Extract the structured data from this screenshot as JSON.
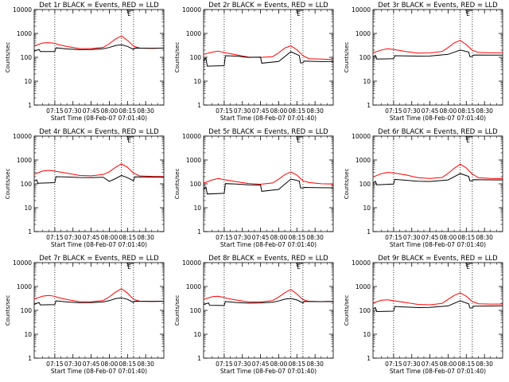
{
  "figure": {
    "x_ticks": [
      "07:15",
      "07:30",
      "07:45",
      "08:00",
      "08:15",
      "08:30"
    ],
    "x_tick_minutes": [
      0,
      15,
      30,
      45,
      60,
      75
    ],
    "x_range_minutes": [
      -17,
      90
    ],
    "y_ticks": [
      "1",
      "10",
      "100",
      "1000",
      "10000"
    ],
    "colors": {
      "events": "#000000",
      "lld": "#ff0000",
      "axes": "#000000"
    }
  },
  "chart_data": [
    {
      "type": "line",
      "title": "Det 1r BLACK = Events, RED = LLD",
      "xlabel": "Start Time (08-Feb-07 07:01:40)",
      "ylabel": "Counts/sec",
      "ylim": [
        1,
        10000
      ],
      "yticks": [
        1,
        10,
        100,
        1000,
        10000
      ],
      "xticks": [
        "07:15",
        "07:30",
        "07:45",
        "08:00",
        "08:15",
        "08:30"
      ],
      "flag_label": "E",
      "vlines_minutes": [
        0,
        55,
        65
      ],
      "series": [
        {
          "name": "LLD",
          "color": "#ff0000",
          "x": [
            -17,
            -10,
            -5,
            0,
            3,
            10,
            20,
            30,
            40,
            45,
            50,
            55,
            60,
            65,
            70,
            80,
            90
          ],
          "y": [
            300,
            390,
            400,
            380,
            340,
            290,
            240,
            235,
            260,
            360,
            560,
            780,
            520,
            300,
            250,
            240,
            240
          ]
        },
        {
          "name": "Events",
          "color": "#000000",
          "x": [
            -17,
            -13,
            -12,
            0,
            1,
            10,
            20,
            30,
            40,
            45,
            50,
            55,
            60,
            65,
            66,
            80,
            90
          ],
          "y": [
            180,
            210,
            170,
            170,
            250,
            230,
            215,
            215,
            225,
            250,
            300,
            330,
            290,
            220,
            250,
            240,
            240
          ]
        }
      ]
    },
    {
      "type": "line",
      "title": "Det 2r BLACK = Events, RED = LLD",
      "xlabel": "Start Time (08-Feb-07 07:01:40)",
      "ylabel": "Counts/sec",
      "ylim": [
        1,
        10000
      ],
      "yticks": [
        1,
        10,
        100,
        1000,
        10000
      ],
      "xticks": [
        "07:15",
        "07:30",
        "07:45",
        "08:00",
        "08:15",
        "08:30"
      ],
      "flag_label": "E",
      "vlines_minutes": [
        0,
        55,
        65
      ],
      "series": [
        {
          "name": "LLD",
          "color": "#ff0000",
          "x": [
            -17,
            -10,
            -5,
            0,
            10,
            20,
            30,
            40,
            45,
            50,
            55,
            60,
            65,
            70,
            80,
            90
          ],
          "y": [
            130,
            160,
            180,
            160,
            130,
            105,
            100,
            105,
            150,
            240,
            300,
            210,
            120,
            90,
            85,
            80
          ]
        },
        {
          "name": "Events",
          "color": "#000000",
          "x": [
            -17,
            -15,
            -14,
            0,
            1,
            10,
            20,
            30,
            31,
            45,
            55,
            62,
            63,
            65,
            66,
            80,
            90
          ],
          "y": [
            70,
            90,
            42,
            45,
            120,
            115,
            100,
            100,
            55,
            65,
            170,
            120,
            60,
            60,
            70,
            65,
            65
          ]
        }
      ]
    },
    {
      "type": "line",
      "title": "Det 3r BLACK = Events, RED = LLD",
      "xlabel": "Start Time (08-Feb-07 07:01:40)",
      "ylabel": "Counts/sec",
      "ylim": [
        1,
        10000
      ],
      "yticks": [
        1,
        10,
        100,
        1000,
        10000
      ],
      "xticks": [
        "07:15",
        "07:30",
        "07:45",
        "08:00",
        "08:15",
        "08:30"
      ],
      "flag_label": "E",
      "vlines_minutes": [
        0,
        55,
        65
      ],
      "series": [
        {
          "name": "LLD",
          "color": "#ff0000",
          "x": [
            -17,
            -10,
            -5,
            0,
            10,
            20,
            30,
            40,
            45,
            50,
            55,
            60,
            65,
            70,
            80,
            90
          ],
          "y": [
            150,
            200,
            230,
            220,
            180,
            150,
            150,
            170,
            250,
            400,
            520,
            350,
            200,
            160,
            150,
            150
          ]
        },
        {
          "name": "Events",
          "color": "#000000",
          "x": [
            -17,
            -15,
            -14,
            0,
            1,
            10,
            20,
            30,
            45,
            55,
            62,
            63,
            65,
            66,
            80,
            90
          ],
          "y": [
            100,
            120,
            85,
            90,
            120,
            115,
            110,
            110,
            130,
            200,
            170,
            110,
            110,
            125,
            120,
            120
          ]
        }
      ]
    },
    {
      "type": "line",
      "title": "Det 4r BLACK = Events, RED = LLD",
      "xlabel": "Start Time (08-Feb-07 07:01:40)",
      "ylabel": "Counts/sec",
      "ylim": [
        1,
        10000
      ],
      "yticks": [
        1,
        10,
        100,
        1000,
        10000
      ],
      "xticks": [
        "07:15",
        "07:30",
        "07:45",
        "08:00",
        "08:15",
        "08:30"
      ],
      "flag_label": "E",
      "vlines_minutes": [
        0,
        55,
        65
      ],
      "series": [
        {
          "name": "LLD",
          "color": "#ff0000",
          "x": [
            -17,
            -10,
            -5,
            0,
            10,
            20,
            30,
            40,
            45,
            50,
            55,
            60,
            65,
            70,
            80,
            90
          ],
          "y": [
            250,
            350,
            380,
            350,
            280,
            220,
            210,
            240,
            320,
            500,
            700,
            500,
            280,
            210,
            200,
            200
          ]
        },
        {
          "name": "Events",
          "color": "#000000",
          "x": [
            -17,
            -15,
            -14,
            0,
            1,
            10,
            20,
            30,
            40,
            45,
            50,
            55,
            60,
            65,
            66,
            80,
            90
          ],
          "y": [
            130,
            150,
            110,
            115,
            200,
            190,
            180,
            180,
            190,
            130,
            170,
            230,
            180,
            130,
            190,
            190,
            190
          ]
        }
      ]
    },
    {
      "type": "line",
      "title": "Det 5r BLACK = Events, RED = LLD",
      "xlabel": "Start Time (08-Feb-07 07:01:40)",
      "ylabel": "Counts/sec",
      "ylim": [
        1,
        10000
      ],
      "yticks": [
        1,
        10,
        100,
        1000,
        10000
      ],
      "xticks": [
        "07:15",
        "07:30",
        "07:45",
        "08:00",
        "08:15",
        "08:30"
      ],
      "flag_label": "E",
      "vlines_minutes": [
        0,
        55,
        65
      ],
      "series": [
        {
          "name": "LLD",
          "color": "#ff0000",
          "x": [
            -17,
            -10,
            -5,
            0,
            10,
            20,
            30,
            40,
            45,
            50,
            55,
            60,
            65,
            70,
            80,
            90
          ],
          "y": [
            110,
            150,
            170,
            150,
            120,
            100,
            95,
            110,
            160,
            250,
            320,
            230,
            130,
            110,
            100,
            100
          ]
        },
        {
          "name": "Events",
          "color": "#000000",
          "x": [
            -17,
            -15,
            -14,
            0,
            1,
            10,
            20,
            30,
            31,
            45,
            55,
            62,
            63,
            65,
            66,
            80,
            90
          ],
          "y": [
            60,
            75,
            38,
            40,
            100,
            95,
            90,
            90,
            50,
            60,
            160,
            130,
            65,
            65,
            70,
            70,
            70
          ]
        }
      ]
    },
    {
      "type": "line",
      "title": "Det 6r BLACK = Events, RED = LLD",
      "xlabel": "Start Time (08-Feb-07 07:01:40)",
      "ylabel": "Counts/sec",
      "ylim": [
        1,
        10000
      ],
      "yticks": [
        1,
        10,
        100,
        1000,
        10000
      ],
      "xticks": [
        "07:15",
        "07:30",
        "07:45",
        "08:00",
        "08:15",
        "08:30"
      ],
      "flag_label": "E",
      "vlines_minutes": [
        0,
        55,
        65
      ],
      "series": [
        {
          "name": "LLD",
          "color": "#ff0000",
          "x": [
            -17,
            -10,
            -5,
            0,
            10,
            20,
            30,
            40,
            45,
            50,
            55,
            60,
            65,
            70,
            80,
            90
          ],
          "y": [
            200,
            270,
            300,
            280,
            230,
            180,
            170,
            190,
            280,
            450,
            650,
            450,
            250,
            180,
            170,
            170
          ]
        },
        {
          "name": "Events",
          "color": "#000000",
          "x": [
            -17,
            -15,
            -14,
            0,
            1,
            10,
            20,
            30,
            45,
            55,
            62,
            63,
            65,
            66,
            80,
            90
          ],
          "y": [
            110,
            130,
            90,
            95,
            150,
            140,
            130,
            130,
            150,
            270,
            200,
            130,
            130,
            150,
            150,
            150
          ]
        }
      ]
    },
    {
      "type": "line",
      "title": "Det 7r BLACK = Events, RED = LLD",
      "xlabel": "Start Time (08-Feb-07 07:01:40)",
      "ylabel": "Counts/sec",
      "ylim": [
        1,
        10000
      ],
      "yticks": [
        1,
        10,
        100,
        1000,
        10000
      ],
      "xticks": [
        "07:15",
        "07:30",
        "07:45",
        "08:00",
        "08:15",
        "08:30"
      ],
      "flag_label": "E",
      "vlines_minutes": [
        0,
        55,
        65
      ],
      "series": [
        {
          "name": "LLD",
          "color": "#ff0000",
          "x": [
            -17,
            -10,
            -5,
            0,
            3,
            10,
            20,
            30,
            40,
            45,
            50,
            55,
            60,
            65,
            70,
            80,
            90
          ],
          "y": [
            300,
            390,
            410,
            380,
            340,
            290,
            240,
            235,
            260,
            360,
            560,
            800,
            530,
            300,
            250,
            240,
            240
          ]
        },
        {
          "name": "Events",
          "color": "#000000",
          "x": [
            -17,
            -13,
            -12,
            0,
            1,
            10,
            20,
            30,
            40,
            45,
            50,
            55,
            60,
            65,
            66,
            80,
            90
          ],
          "y": [
            180,
            210,
            165,
            170,
            250,
            230,
            215,
            215,
            225,
            250,
            300,
            330,
            290,
            220,
            250,
            240,
            240
          ]
        }
      ]
    },
    {
      "type": "line",
      "title": "Det 8r BLACK = Events, RED = LLD",
      "xlabel": "Start Time (08-Feb-07 07:01:40)",
      "ylabel": "Counts/sec",
      "ylim": [
        1,
        10000
      ],
      "yticks": [
        1,
        10,
        100,
        1000,
        10000
      ],
      "xticks": [
        "07:15",
        "07:30",
        "07:45",
        "08:00",
        "08:15",
        "08:30"
      ],
      "flag_label": "E",
      "vlines_minutes": [
        0,
        55,
        65
      ],
      "series": [
        {
          "name": "LLD",
          "color": "#ff0000",
          "x": [
            -17,
            -10,
            -5,
            0,
            3,
            10,
            20,
            30,
            40,
            45,
            50,
            55,
            60,
            65,
            70,
            80,
            90
          ],
          "y": [
            280,
            360,
            380,
            350,
            320,
            280,
            230,
            225,
            250,
            350,
            540,
            760,
            500,
            290,
            240,
            230,
            230
          ]
        },
        {
          "name": "Events",
          "color": "#000000",
          "x": [
            -17,
            -13,
            -12,
            0,
            1,
            10,
            20,
            30,
            40,
            45,
            50,
            55,
            60,
            65,
            66,
            80,
            90
          ],
          "y": [
            170,
            200,
            160,
            160,
            240,
            220,
            205,
            205,
            215,
            240,
            290,
            320,
            280,
            210,
            240,
            230,
            230
          ]
        }
      ]
    },
    {
      "type": "line",
      "title": "Det 9r BLACK = Events, RED = LLD",
      "xlabel": "Start Time (08-Feb-07 07:01:40)",
      "ylabel": "Counts/sec",
      "ylim": [
        1,
        10000
      ],
      "yticks": [
        1,
        10,
        100,
        1000,
        10000
      ],
      "xticks": [
        "07:15",
        "07:30",
        "07:45",
        "08:00",
        "08:15",
        "08:30"
      ],
      "flag_label": "E",
      "vlines_minutes": [
        0,
        55,
        65
      ],
      "series": [
        {
          "name": "LLD",
          "color": "#ff0000",
          "x": [
            -17,
            -10,
            -5,
            0,
            10,
            20,
            30,
            40,
            45,
            50,
            55,
            60,
            65,
            70,
            80,
            90
          ],
          "y": [
            200,
            260,
            280,
            260,
            220,
            180,
            170,
            190,
            280,
            420,
            550,
            400,
            240,
            190,
            180,
            180
          ]
        },
        {
          "name": "Events",
          "color": "#000000",
          "x": [
            -17,
            -15,
            -14,
            0,
            1,
            10,
            20,
            30,
            45,
            55,
            62,
            63,
            65,
            66,
            80,
            90
          ],
          "y": [
            110,
            130,
            90,
            95,
            150,
            140,
            130,
            130,
            150,
            250,
            190,
            130,
            130,
            150,
            150,
            150
          ]
        }
      ]
    }
  ]
}
